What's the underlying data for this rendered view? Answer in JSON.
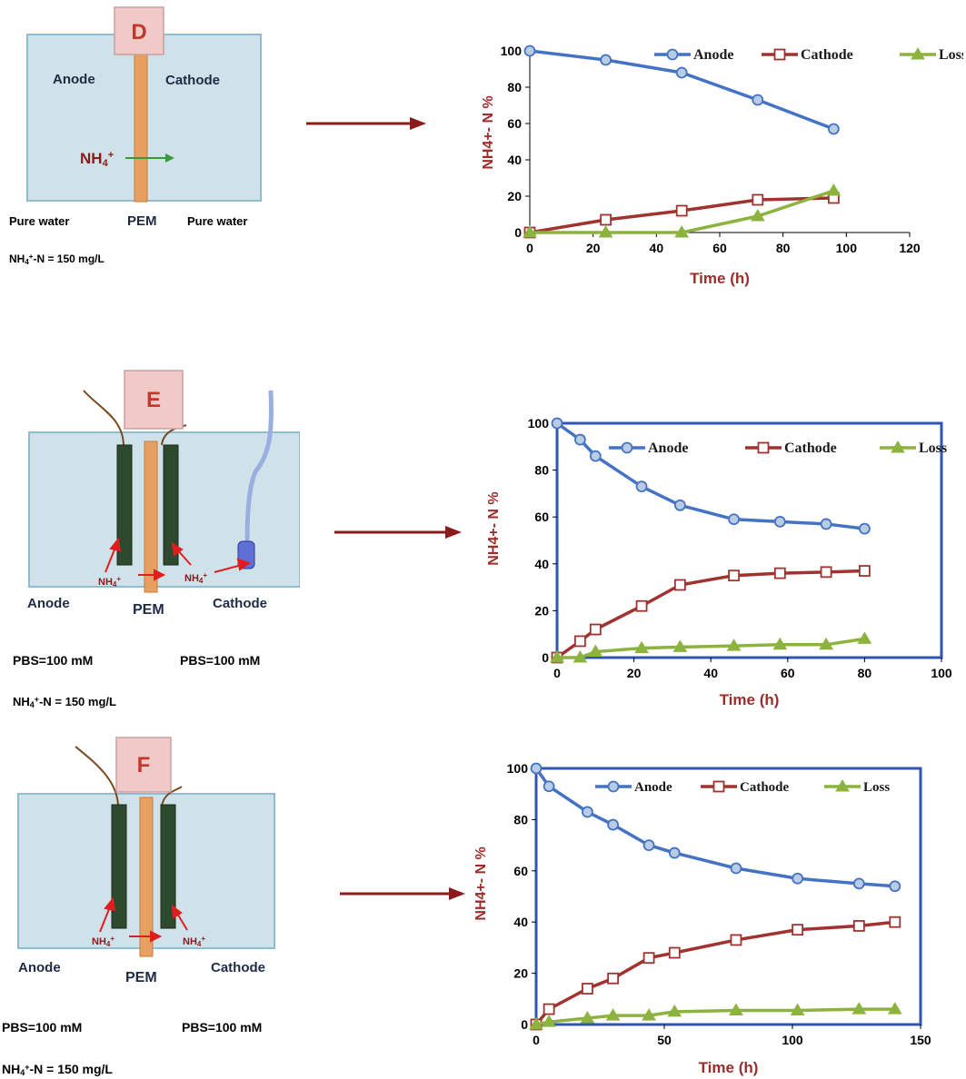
{
  "panels": [
    {
      "id": "D",
      "diagram": {
        "letter": "D",
        "left_label": "Anode",
        "right_label": "Cathode",
        "membrane_label": "PEM",
        "ion": "NH4+",
        "left_solution": "Pure water",
        "right_solution": "Pure water",
        "concentration": "NH4+-N = 150 mg/L"
      }
    },
    {
      "id": "E",
      "diagram": {
        "letter": "E",
        "left_label": "Anode",
        "right_label": "Cathode",
        "membrane_label": "PEM",
        "ion": "NH4+",
        "left_solution": "PBS=100 mM",
        "right_solution": "PBS=100 mM",
        "concentration": "NH4+-N = 150 mg/L"
      }
    },
    {
      "id": "F",
      "diagram": {
        "letter": "F",
        "left_label": "Anode",
        "right_label": "Cathode",
        "membrane_label": "PEM",
        "ion": "NH4+",
        "left_solution": "PBS=100 mM",
        "right_solution": "PBS=100 mM",
        "concentration": "NH4+-N = 150 mg/L"
      }
    }
  ],
  "colors": {
    "anode": "#4472c4",
    "anode_fill": "#b8cce4",
    "cathode": "#a0332f",
    "loss": "#8db33f",
    "axis_title": "#9b2d2a",
    "arrow": "#8b1a1a",
    "tank_fill": "#cfe2ea",
    "tank_stroke": "#8fbcd3",
    "pem": "#e8a060",
    "electrode": "#2e4a2e",
    "letter_box": "#f2c9c9",
    "letter": "#c0392b",
    "chart_frame": "#2f55b5"
  },
  "chart_data": [
    {
      "type": "line",
      "xlabel": "Time (h)",
      "ylabel": "NH4+- N  %",
      "xlim": [
        0,
        120
      ],
      "ylim": [
        0,
        100
      ],
      "xticks": [
        "0",
        "20",
        "40",
        "60",
        "80",
        "100",
        "120"
      ],
      "yticks": [
        "0",
        "20",
        "40",
        "60",
        "80",
        "100"
      ],
      "legend": "top",
      "series": [
        {
          "name": "Anode",
          "marker": "circle",
          "x": [
            0,
            24,
            48,
            72,
            96
          ],
          "y": [
            100,
            95,
            88,
            73,
            57
          ]
        },
        {
          "name": "Cathode",
          "marker": "square",
          "x": [
            0,
            24,
            48,
            72,
            96
          ],
          "y": [
            0,
            7,
            12,
            18,
            19
          ]
        },
        {
          "name": "Loss",
          "marker": "triangle",
          "x": [
            0,
            24,
            48,
            72,
            96
          ],
          "y": [
            0,
            0,
            0,
            9,
            23
          ]
        }
      ]
    },
    {
      "type": "line",
      "xlabel": "Time (h)",
      "ylabel": "NH4+- N  %",
      "xlim": [
        0,
        100
      ],
      "ylim": [
        0,
        100
      ],
      "xticks": [
        "0",
        "20",
        "40",
        "60",
        "80",
        "100"
      ],
      "yticks": [
        "0",
        "20",
        "40",
        "60",
        "80",
        "100"
      ],
      "legend": "top",
      "series": [
        {
          "name": "Anode",
          "marker": "circle",
          "x": [
            0,
            6,
            10,
            22,
            32,
            46,
            58,
            70,
            80
          ],
          "y": [
            100,
            93,
            86,
            73,
            65,
            59,
            58,
            57,
            55
          ]
        },
        {
          "name": "Cathode",
          "marker": "square",
          "x": [
            0,
            6,
            10,
            22,
            32,
            46,
            58,
            70,
            80
          ],
          "y": [
            0,
            7,
            12,
            22,
            31,
            35,
            36,
            36.5,
            37
          ]
        },
        {
          "name": "Loss",
          "marker": "triangle",
          "x": [
            0,
            6,
            10,
            22,
            32,
            46,
            58,
            70,
            80
          ],
          "y": [
            0,
            0,
            2.5,
            4,
            4.5,
            5,
            5.5,
            5.5,
            8
          ]
        }
      ]
    },
    {
      "type": "line",
      "xlabel": "Time (h)",
      "ylabel": "NH4+- N  %",
      "xlim": [
        0,
        150
      ],
      "ylim": [
        0,
        100
      ],
      "xticks": [
        "0",
        "50",
        "100",
        "150"
      ],
      "yticks": [
        "0",
        "20",
        "40",
        "60",
        "80",
        "100"
      ],
      "legend": "top",
      "series": [
        {
          "name": "Anode",
          "marker": "circle",
          "x": [
            0,
            5,
            20,
            30,
            44,
            54,
            78,
            102,
            126,
            140
          ],
          "y": [
            100,
            93,
            83,
            78,
            70,
            67,
            61,
            57,
            55,
            54
          ]
        },
        {
          "name": "Cathode",
          "marker": "square",
          "x": [
            0,
            5,
            20,
            30,
            44,
            54,
            78,
            102,
            126,
            140
          ],
          "y": [
            0,
            6,
            14,
            18,
            26,
            28,
            33,
            37,
            38.5,
            40
          ]
        },
        {
          "name": "Loss",
          "marker": "triangle",
          "x": [
            0,
            5,
            20,
            30,
            44,
            54,
            78,
            102,
            126,
            140
          ],
          "y": [
            0,
            1,
            2.5,
            3.5,
            3.5,
            5,
            5.5,
            5.5,
            6,
            6
          ]
        }
      ]
    }
  ]
}
